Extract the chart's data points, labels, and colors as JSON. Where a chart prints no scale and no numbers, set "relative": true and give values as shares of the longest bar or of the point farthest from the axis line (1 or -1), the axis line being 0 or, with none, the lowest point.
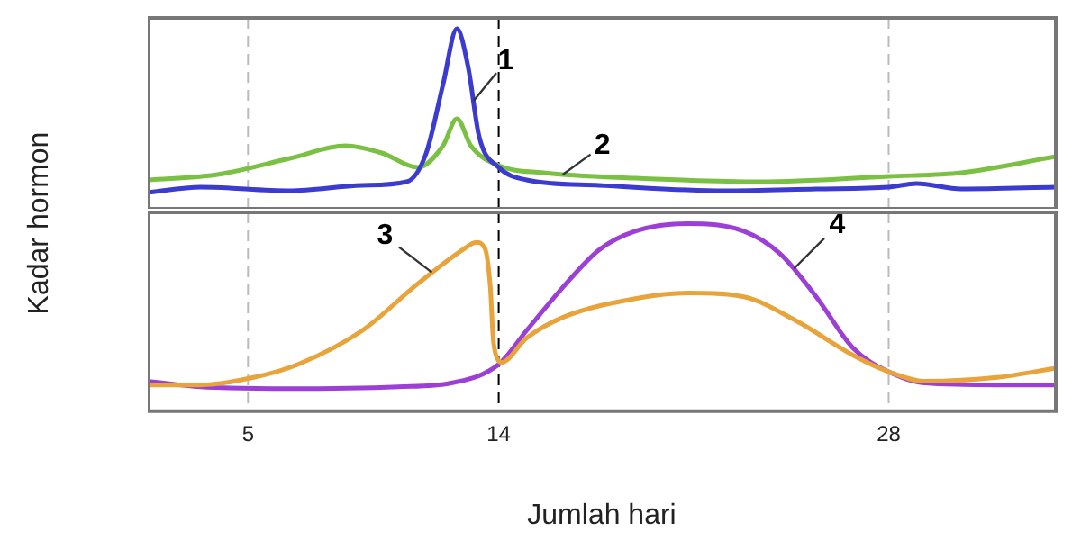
{
  "chart_data": [
    {
      "type": "line",
      "relative": true,
      "ylabel": "Kadar hormon",
      "xlim": [
        1.4,
        34
      ],
      "xticks": [
        5,
        14,
        28
      ],
      "tick_labels": false,
      "grid": false,
      "legend": false,
      "marker": "none",
      "line_style": "solid",
      "series": [
        {
          "color": "#3b3bd0",
          "x": [
            1.4,
            3.3,
            6.5,
            9.1,
            10.7,
            11.4,
            12.0,
            12.5,
            12.9,
            13.3,
            14.0,
            15.0,
            17.6,
            22.1,
            25.4,
            28.0,
            29.0,
            30.6,
            34.0
          ],
          "values": [
            0.09,
            0.12,
            0.1,
            0.13,
            0.15,
            0.31,
            0.69,
            1.0,
            0.79,
            0.4,
            0.23,
            0.16,
            0.13,
            0.1,
            0.11,
            0.12,
            0.14,
            0.11,
            0.12
          ]
        },
        {
          "color": "#7ac143",
          "x": [
            1.4,
            3.9,
            6.5,
            8.5,
            9.8,
            11.1,
            12.0,
            12.5,
            13.0,
            14.0,
            15.6,
            18.9,
            23.4,
            28.0,
            30.6,
            34.0
          ],
          "values": [
            0.16,
            0.19,
            0.28,
            0.35,
            0.31,
            0.23,
            0.35,
            0.5,
            0.35,
            0.24,
            0.2,
            0.17,
            0.15,
            0.18,
            0.2,
            0.29
          ]
        }
      ],
      "ref_lines": [
        {
          "axis": "x",
          "value": 5,
          "color": "#bbbbbb",
          "line_style": "dashed"
        },
        {
          "axis": "x",
          "value": 14,
          "color": "#000000",
          "line_style": "dashed"
        },
        {
          "axis": "x",
          "value": 28,
          "color": "#bbbbbb",
          "line_style": "dashed"
        }
      ],
      "annotations": [
        {
          "text": "1",
          "x": 13.1,
          "y": 0.6
        },
        {
          "text": "2",
          "x": 16.3,
          "y": 0.19
        }
      ]
    },
    {
      "type": "line",
      "relative": true,
      "xlabel": "Jumlah hari",
      "xlim": [
        1.4,
        34
      ],
      "xticks": [
        5,
        14,
        28
      ],
      "tick_labels": "x",
      "grid": false,
      "legend": false,
      "marker": "none",
      "line_style": "solid",
      "series": [
        {
          "color": "#e8a33a",
          "x": [
            1.4,
            3.3,
            5.2,
            6.8,
            9.1,
            11.1,
            12.7,
            13.2,
            13.5,
            13.7,
            13.8,
            13.9,
            14.1,
            15.0,
            16.3,
            18.9,
            20.8,
            22.8,
            24.7,
            26.7,
            28.0,
            29.3,
            31.9,
            34.0
          ],
          "values": [
            0.14,
            0.14,
            0.18,
            0.25,
            0.43,
            0.68,
            0.86,
            0.9,
            0.87,
            0.66,
            0.39,
            0.3,
            0.26,
            0.39,
            0.5,
            0.6,
            0.63,
            0.61,
            0.48,
            0.3,
            0.21,
            0.16,
            0.18,
            0.23
          ]
        },
        {
          "color": "#9b3fd6",
          "x": [
            1.4,
            3.3,
            6.5,
            10.4,
            12.3,
            14.0,
            15.0,
            16.3,
            17.6,
            18.9,
            20.8,
            22.8,
            24.1,
            25.4,
            26.7,
            28.0,
            29.3,
            31.9,
            34.0
          ],
          "values": [
            0.16,
            0.13,
            0.12,
            0.13,
            0.15,
            0.25,
            0.43,
            0.66,
            0.86,
            0.96,
            1.0,
            0.96,
            0.84,
            0.61,
            0.34,
            0.21,
            0.15,
            0.14,
            0.14
          ]
        }
      ],
      "ref_lines": [
        {
          "axis": "x",
          "value": 5,
          "color": "#bbbbbb",
          "line_style": "dashed"
        },
        {
          "axis": "x",
          "value": 14,
          "color": "#000000",
          "line_style": "dashed"
        },
        {
          "axis": "x",
          "value": 28,
          "color": "#bbbbbb",
          "line_style": "dashed"
        }
      ],
      "annotations": [
        {
          "text": "3",
          "x": 11.6,
          "y": 0.74
        },
        {
          "text": "4",
          "x": 24.6,
          "y": 0.76
        }
      ]
    }
  ]
}
